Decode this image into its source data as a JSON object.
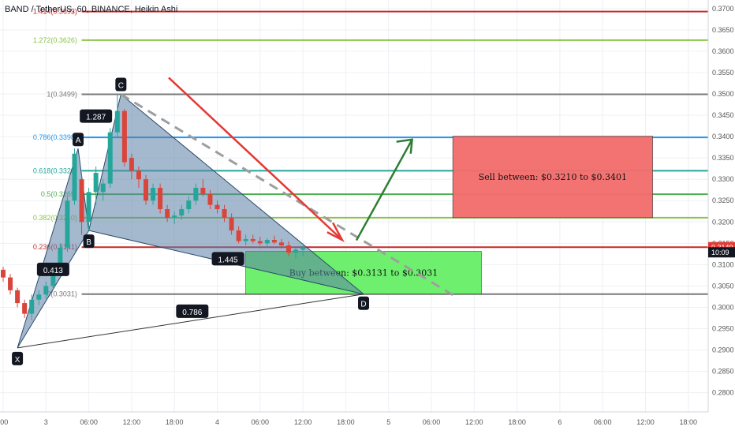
{
  "header": {
    "title": "BAND / TetherUS, 60, BINANCE, Heikin Ashi"
  },
  "colors": {
    "fib_1414": "#c62828",
    "fib_1272": "#8bc34a",
    "fib_1": "#787878",
    "fib_0786": "#2196f3",
    "fib_0618": "#26a69a",
    "fib_05": "#4caf50",
    "fib_0382": "#8bc34a",
    "fib_0236": "#c62828",
    "fib_0": "#787878",
    "pattern_fill": "#5b7fa6",
    "bull_candle": "#26a69a",
    "bear_candle": "#d9453a",
    "sell_zone": "#f26b6b",
    "buy_zone": "#66ee66",
    "down_arrow": "#e53935",
    "up_arrow": "#2e7d32",
    "price_badge": "#e53935",
    "time_badge": "#131722"
  },
  "chart_data": {
    "type": "candlestick",
    "title": "BAND / TetherUS, 60, BINANCE, Heikin Ashi",
    "y_range": [
      0.2755,
      0.372
    ],
    "y_ticks": [
      "0.3700",
      "0.3650",
      "0.3600",
      "0.3550",
      "0.3500",
      "0.3450",
      "0.3400",
      "0.3350",
      "0.3300",
      "0.3250",
      "0.3200",
      "0.3150",
      "0.3100",
      "0.3050",
      "0.3000",
      "0.2950",
      "0.2900",
      "0.2850",
      "0.2800"
    ],
    "x_range": [
      0,
      96
    ],
    "x_ticks": [
      {
        "label": ":00",
        "x": 0
      },
      {
        "label": "3",
        "x": 6
      },
      {
        "label": "06:00",
        "x": 12
      },
      {
        "label": "12:00",
        "x": 18
      },
      {
        "label": "18:00",
        "x": 24
      },
      {
        "label": "4",
        "x": 30
      },
      {
        "label": "06:00",
        "x": 36
      },
      {
        "label": "12:00",
        "x": 42
      },
      {
        "label": "18:00",
        "x": 48
      },
      {
        "label": "5",
        "x": 54
      },
      {
        "label": "06:00",
        "x": 60
      },
      {
        "label": "12:00",
        "x": 66
      },
      {
        "label": "18:00",
        "x": 72
      },
      {
        "label": "6",
        "x": 78
      },
      {
        "label": "06:00",
        "x": 84
      },
      {
        "label": "12:00",
        "x": 90
      },
      {
        "label": "18:00",
        "x": 96
      }
    ],
    "fib_levels": [
      {
        "label": "1.414(0.3693)",
        "price": 0.3693,
        "key": "fib_1414"
      },
      {
        "label": "1.272(0.3626)",
        "price": 0.3626,
        "key": "fib_1272"
      },
      {
        "label": "1(0.3499)",
        "price": 0.3499,
        "key": "fib_1"
      },
      {
        "label": "0.786(0.3398)",
        "price": 0.3398,
        "key": "fib_0786"
      },
      {
        "label": "0.618(0.3320)",
        "price": 0.332,
        "key": "fib_0618"
      },
      {
        "label": "0.5(0.3265)",
        "price": 0.3265,
        "key": "fib_05"
      },
      {
        "label": "0.382(0.3210)",
        "price": 0.321,
        "key": "fib_0382"
      },
      {
        "label": "0.236(0.3141)",
        "price": 0.3141,
        "key": "fib_0236"
      },
      {
        "label": "0(0.3031)",
        "price": 0.3031,
        "key": "fib_0"
      }
    ],
    "pattern_points": [
      {
        "name": "X",
        "x": 2,
        "price": 0.2905
      },
      {
        "name": "A",
        "x": 10.5,
        "price": 0.3372
      },
      {
        "name": "B",
        "x": 12,
        "price": 0.318
      },
      {
        "name": "C",
        "x": 16.5,
        "price": 0.3499
      },
      {
        "name": "D",
        "x": 50.5,
        "price": 0.3031
      }
    ],
    "ratios": [
      {
        "text": "0.413",
        "x": 7,
        "price": 0.3088
      },
      {
        "text": "1.287",
        "x": 13,
        "price": 0.3447
      },
      {
        "text": "1.445",
        "x": 31.5,
        "price": 0.3113
      },
      {
        "text": "0.786",
        "x": 26.5,
        "price": 0.299
      }
    ],
    "sell_zone": {
      "text": "Sell between: $0.3210 to $0.3401",
      "x0": 63,
      "x1": 91,
      "top": 0.3401,
      "bottom": 0.321
    },
    "buy_zone": {
      "text": "Buy between: $0.3131 to $0.3031",
      "x0": 34,
      "x1": 67,
      "top": 0.3131,
      "bottom": 0.3031
    },
    "current_price": {
      "label": "0.3140",
      "price": 0.314
    },
    "time_label": {
      "label": "10:09",
      "price": 0.3128
    },
    "candles": [
      [
        0,
        0.3088,
        0.3095,
        0.306,
        0.307
      ],
      [
        1,
        0.307,
        0.3078,
        0.303,
        0.304
      ],
      [
        2,
        0.304,
        0.3046,
        0.3,
        0.301
      ],
      [
        3,
        0.301,
        0.3018,
        0.2975,
        0.2985
      ],
      [
        4,
        0.2985,
        0.303,
        0.297,
        0.3018
      ],
      [
        5,
        0.3018,
        0.304,
        0.3005,
        0.303
      ],
      [
        6,
        0.303,
        0.306,
        0.302,
        0.305
      ],
      [
        7,
        0.305,
        0.309,
        0.304,
        0.308
      ],
      [
        8,
        0.308,
        0.315,
        0.307,
        0.314
      ],
      [
        9,
        0.314,
        0.326,
        0.313,
        0.325
      ],
      [
        10,
        0.325,
        0.3372,
        0.324,
        0.336
      ],
      [
        11,
        0.33,
        0.331,
        0.317,
        0.32
      ],
      [
        12,
        0.32,
        0.328,
        0.318,
        0.327
      ],
      [
        13,
        0.327,
        0.333,
        0.324,
        0.3315
      ],
      [
        14,
        0.327,
        0.33,
        0.325,
        0.329
      ],
      [
        15,
        0.329,
        0.342,
        0.328,
        0.341
      ],
      [
        16,
        0.341,
        0.3499,
        0.34,
        0.346
      ],
      [
        17,
        0.346,
        0.3465,
        0.333,
        0.334
      ],
      [
        18,
        0.335,
        0.336,
        0.33,
        0.332
      ],
      [
        19,
        0.332,
        0.333,
        0.328,
        0.33
      ],
      [
        20,
        0.33,
        0.331,
        0.324,
        0.325
      ],
      [
        21,
        0.325,
        0.329,
        0.324,
        0.328
      ],
      [
        22,
        0.328,
        0.329,
        0.322,
        0.323
      ],
      [
        23,
        0.323,
        0.324,
        0.32,
        0.321
      ],
      [
        24,
        0.321,
        0.3225,
        0.3195,
        0.3215
      ],
      [
        25,
        0.3215,
        0.324,
        0.3205,
        0.323
      ],
      [
        26,
        0.323,
        0.326,
        0.322,
        0.325
      ],
      [
        27,
        0.325,
        0.329,
        0.324,
        0.328
      ],
      [
        28,
        0.328,
        0.33,
        0.326,
        0.3265
      ],
      [
        29,
        0.3265,
        0.3275,
        0.323,
        0.324
      ],
      [
        30,
        0.324,
        0.325,
        0.322,
        0.323
      ],
      [
        31,
        0.323,
        0.324,
        0.32,
        0.321
      ],
      [
        32,
        0.321,
        0.322,
        0.317,
        0.318
      ],
      [
        33,
        0.318,
        0.319,
        0.315,
        0.3155
      ],
      [
        34,
        0.3155,
        0.317,
        0.3145,
        0.316
      ],
      [
        35,
        0.316,
        0.317,
        0.315,
        0.3155
      ],
      [
        36,
        0.3155,
        0.3165,
        0.3145,
        0.315
      ],
      [
        37,
        0.315,
        0.3162,
        0.314,
        0.3158
      ],
      [
        38,
        0.3158,
        0.3168,
        0.3148,
        0.3152
      ],
      [
        39,
        0.3152,
        0.316,
        0.3138,
        0.3145
      ],
      [
        40,
        0.3145,
        0.3155,
        0.312,
        0.3128
      ],
      [
        41,
        0.3128,
        0.314,
        0.3115,
        0.3135
      ],
      [
        42,
        0.3135,
        0.315,
        0.312,
        0.314
      ]
    ]
  }
}
